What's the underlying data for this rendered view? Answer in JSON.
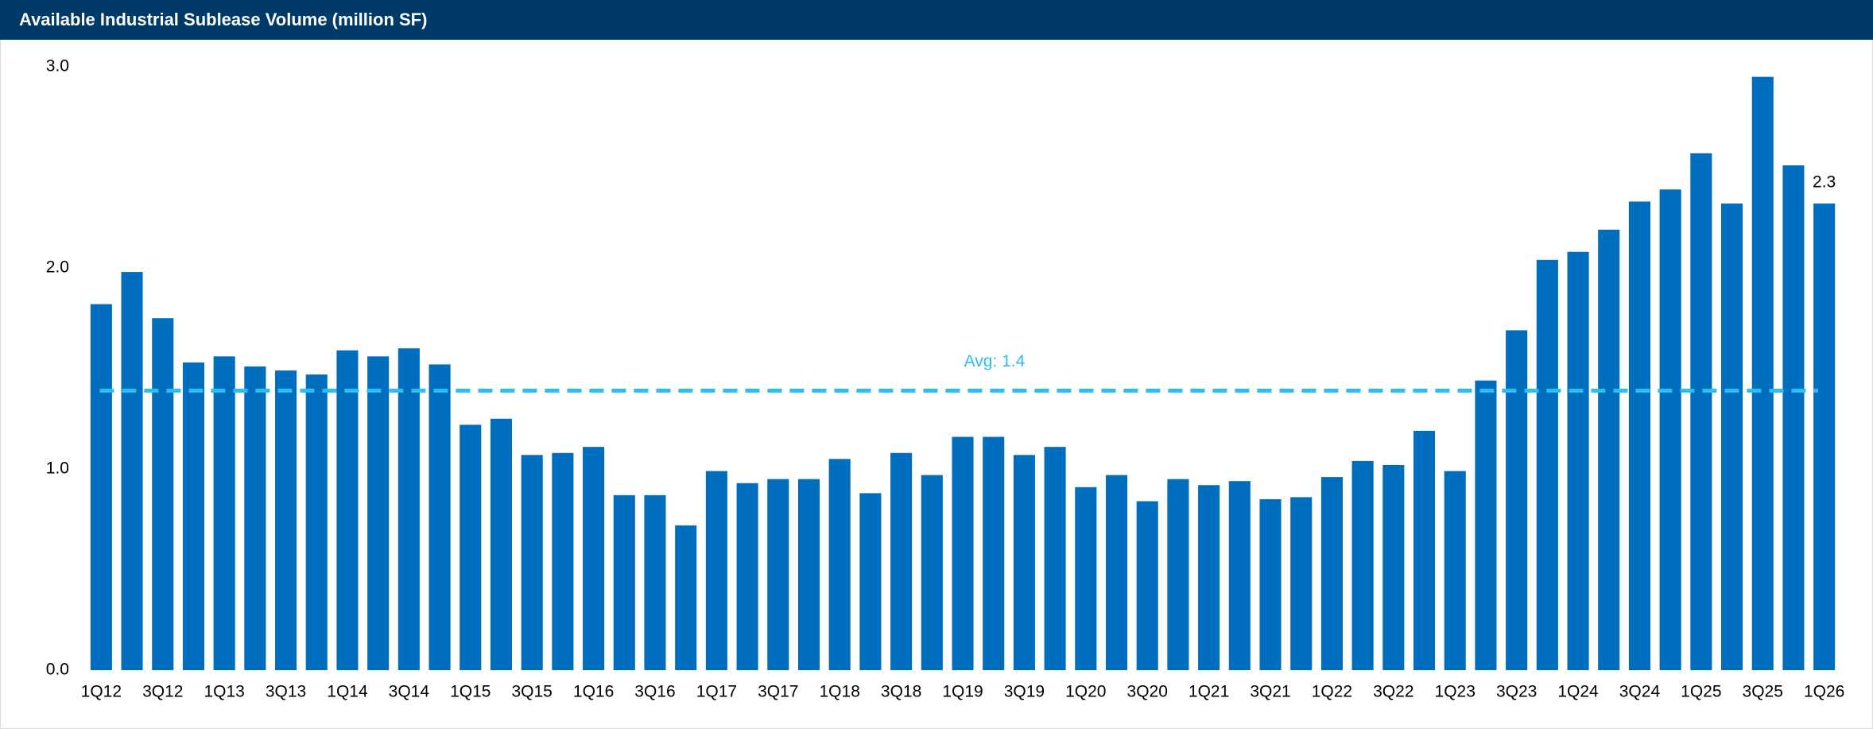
{
  "chart_data": {
    "type": "bar",
    "title": "Available Industrial Sublease Volume (million SF)",
    "categories": [
      "1Q12",
      null,
      "3Q12",
      null,
      "1Q13",
      null,
      "3Q13",
      null,
      "1Q14",
      null,
      "3Q14",
      null,
      "1Q15",
      null,
      "3Q15",
      null,
      "1Q16",
      null,
      "3Q16",
      null,
      "1Q17",
      null,
      "3Q17",
      null,
      "1Q18",
      null,
      "3Q18",
      null,
      "1Q19",
      null,
      "3Q19",
      null,
      "1Q20",
      null,
      "3Q20",
      null,
      "1Q21",
      null,
      "3Q21",
      null,
      "1Q22",
      null,
      "3Q22",
      null,
      "1Q23",
      null,
      "3Q23",
      null,
      "1Q24",
      null,
      "3Q24",
      null,
      "1Q25",
      null,
      "3Q25",
      null,
      "1Q26"
    ],
    "values": [
      1.82,
      1.98,
      1.75,
      1.53,
      1.56,
      1.51,
      1.49,
      1.47,
      1.59,
      1.56,
      1.6,
      1.52,
      1.22,
      1.25,
      1.07,
      1.08,
      1.11,
      0.87,
      0.87,
      0.72,
      0.99,
      0.93,
      0.95,
      0.95,
      1.05,
      0.88,
      1.08,
      0.97,
      1.16,
      1.16,
      1.07,
      1.11,
      0.91,
      0.97,
      0.84,
      0.95,
      0.92,
      0.94,
      0.85,
      0.86,
      0.96,
      1.04,
      1.02,
      1.19,
      0.99,
      1.44,
      1.69,
      2.04,
      2.08,
      2.19,
      2.33,
      2.39,
      2.57,
      2.32,
      2.95,
      2.51,
      2.32
    ],
    "value_labels": [
      null,
      null,
      null,
      null,
      null,
      null,
      null,
      null,
      null,
      null,
      null,
      null,
      null,
      null,
      null,
      null,
      null,
      null,
      null,
      null,
      null,
      null,
      null,
      null,
      null,
      null,
      null,
      null,
      null,
      null,
      null,
      null,
      null,
      null,
      null,
      null,
      null,
      null,
      null,
      null,
      null,
      null,
      null,
      null,
      null,
      null,
      null,
      null,
      null,
      null,
      null,
      null,
      null,
      null,
      null,
      null,
      "2.3"
    ],
    "color": "#006ebe",
    "ylim": [
      0,
      3
    ],
    "yticks": [
      {
        "value": 0,
        "label": "0.0"
      },
      {
        "value": 1,
        "label": "1.0"
      },
      {
        "value": 2,
        "label": "2.0"
      },
      {
        "value": 3,
        "label": "3.0"
      }
    ],
    "grid": false,
    "reference_line": {
      "value": 1.39,
      "label": "Avg: 1.4",
      "color": "#2ebdf0"
    }
  }
}
